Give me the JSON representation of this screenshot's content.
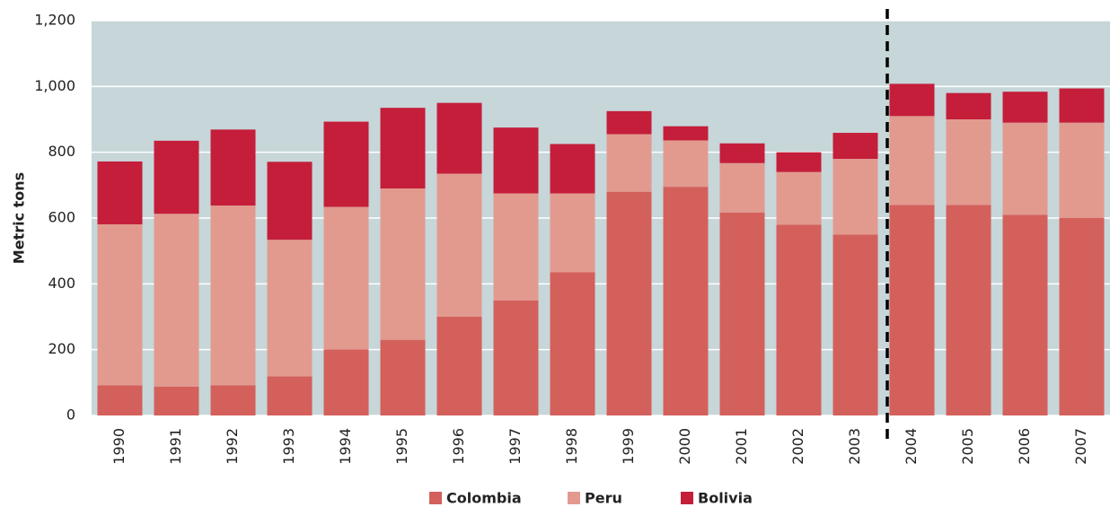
{
  "chart_data": {
    "type": "stacked_bar",
    "y_label": "Metric tons",
    "categories": [
      "1990",
      "1991",
      "1992",
      "1993",
      "1994",
      "1995",
      "1996",
      "1997",
      "1998",
      "1999",
      "2000",
      "2001",
      "2002",
      "2003",
      "2004",
      "2005",
      "2006",
      "2007"
    ],
    "series": [
      {
        "name": "Colombia",
        "color": "#d4605b",
        "values": [
          92,
          88,
          92,
          119,
          201,
          230,
          300,
          350,
          435,
          680,
          695,
          617,
          580,
          550,
          640,
          640,
          610,
          600
        ]
      },
      {
        "name": "Peru",
        "color": "#e29a8f",
        "values": [
          489,
          525,
          546,
          415,
          433,
          460,
          435,
          325,
          240,
          175,
          141,
          150,
          160,
          230,
          270,
          260,
          280,
          290
        ]
      },
      {
        "name": "Bolivia",
        "color": "#c41e3a",
        "values": [
          191,
          222,
          231,
          237,
          259,
          245,
          215,
          200,
          150,
          70,
          43,
          60,
          60,
          79,
          98,
          80,
          94,
          104
        ]
      }
    ],
    "ylim": [
      0,
      1200
    ],
    "yticks": [
      0,
      200,
      400,
      600,
      800,
      {
        "value": 1000,
        "label": "1,000"
      },
      {
        "value": 1200,
        "label": "1,200"
      }
    ],
    "grid": true,
    "legend": "bottom"
  }
}
